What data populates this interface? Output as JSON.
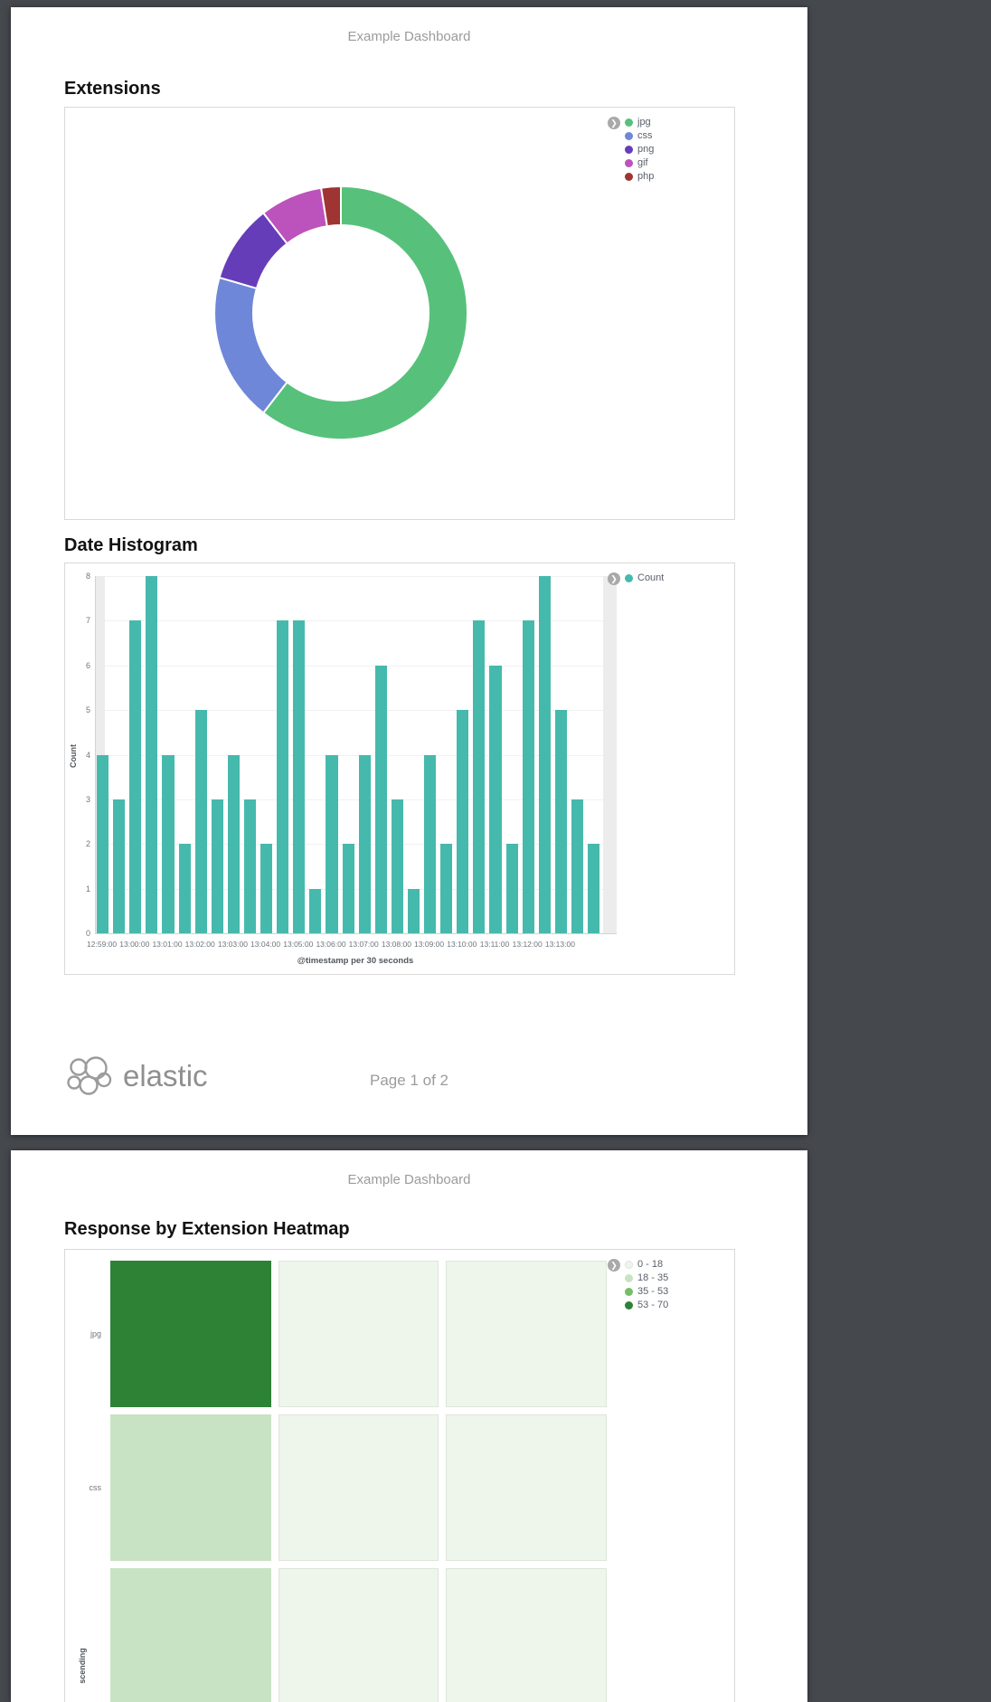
{
  "pages": [
    {
      "header": "Example Dashboard",
      "sections": [
        {
          "title": "Extensions"
        },
        {
          "title": "Date Histogram"
        }
      ],
      "footer": {
        "brand": "elastic",
        "page_label": "Page 1 of 2"
      }
    },
    {
      "header": "Example Dashboard",
      "sections": [
        {
          "title": "Response by Extension Heatmap"
        }
      ]
    }
  ],
  "chart_data": [
    {
      "type": "pie",
      "title": "Extensions",
      "donut": true,
      "labels": [
        "jpg",
        "css",
        "png",
        "gif",
        "php"
      ],
      "values": [
        60.5,
        19,
        10,
        8,
        2.5
      ],
      "colors": [
        "#57c17b",
        "#6f87d8",
        "#663db8",
        "#bc52bc",
        "#9e3533"
      ],
      "legend_position": "right"
    },
    {
      "type": "bar",
      "title": "Date Histogram",
      "series_name": "Count",
      "color": "#46b9ad",
      "ylabel": "Count",
      "xlabel": "@timestamp per 30 seconds",
      "ylim": [
        0,
        8
      ],
      "y_ticks": [
        0,
        1,
        2,
        3,
        4,
        5,
        6,
        7,
        8
      ],
      "x_tick_labels": [
        "12:59:00",
        "13:00:00",
        "13:01:00",
        "13:02:00",
        "13:03:00",
        "13:04:00",
        "13:05:00",
        "13:06:00",
        "13:07:00",
        "13:08:00",
        "13:09:00",
        "13:10:00",
        "13:11:00",
        "13:12:00",
        "13:13:00"
      ],
      "values": [
        4,
        3,
        7,
        8,
        4,
        2,
        5,
        3,
        4,
        3,
        2,
        7,
        7,
        1,
        4,
        2,
        4,
        6,
        3,
        1,
        4,
        2,
        5,
        7,
        6,
        2,
        7,
        8,
        5,
        3,
        2
      ],
      "legend_position": "right",
      "grid": true
    },
    {
      "type": "heatmap",
      "title": "Response by Extension Heatmap",
      "ylabel_visible_fragment": "scending",
      "legend_position": "right",
      "legend": [
        {
          "label": "0 - 18",
          "color": "#eef6ec",
          "border": "#dde6da"
        },
        {
          "label": "18 - 35",
          "color": "#c8e3c3"
        },
        {
          "label": "35 - 53",
          "color": "#73bf68"
        },
        {
          "label": "53 - 70",
          "color": "#2d8236"
        }
      ],
      "rows": [
        {
          "label": "jpg",
          "cells": [
            "53 - 70",
            "0 - 18",
            "0 - 18"
          ]
        },
        {
          "label": "css",
          "cells": [
            "18 - 35",
            "0 - 18",
            "0 - 18"
          ]
        },
        {
          "label": "",
          "cells": [
            "18 - 35",
            "0 - 18",
            "0 - 18"
          ]
        }
      ]
    }
  ]
}
